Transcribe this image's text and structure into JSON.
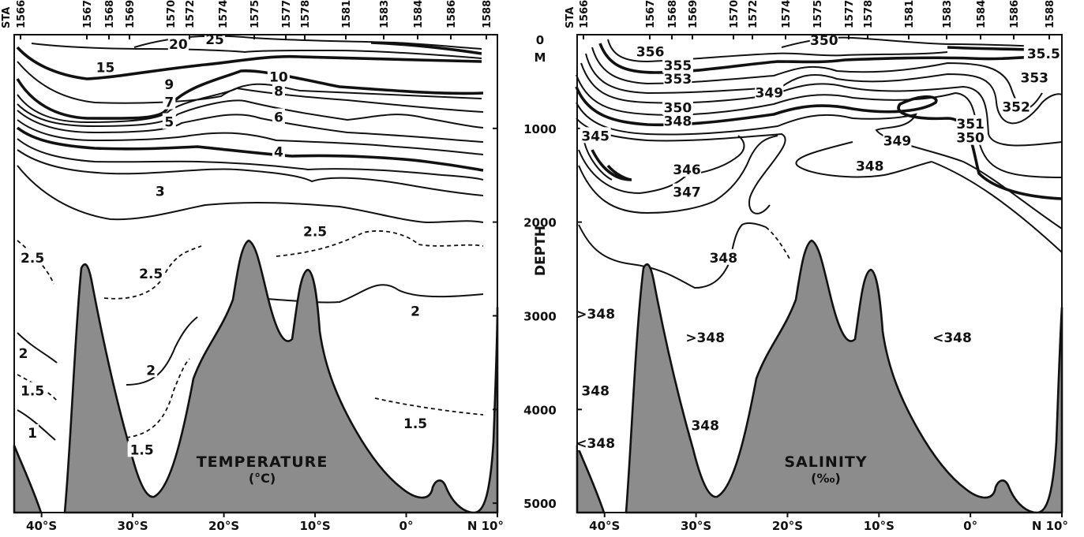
{
  "chart_data": [
    {
      "type": "contour",
      "title": "TEMPERATURE",
      "unit_label": "(°C)",
      "station_header": "STA",
      "stations": [
        "1566",
        "1567",
        "1568",
        "1569",
        "1570",
        "1572",
        "1574",
        "1575",
        "1577",
        "1578",
        "1581",
        "1583",
        "1584",
        "1586",
        "1588"
      ],
      "x_ticks": [
        "40°S",
        "30°S",
        "20°S",
        "10°S",
        "0°",
        "N 10°"
      ],
      "x_tick_values": [
        -40,
        -30,
        -20,
        -10,
        0,
        10
      ],
      "xlim": [
        -43,
        10
      ],
      "ylim": [
        0,
        5100
      ],
      "contour_labels": [
        {
          "label": "25",
          "lat": -21,
          "depth": 50,
          "style": "solid"
        },
        {
          "label": "20",
          "lat": -25,
          "depth": 100,
          "style": "solid"
        },
        {
          "label": "15",
          "lat": -33,
          "depth": 350,
          "style": "bold"
        },
        {
          "label": "10",
          "lat": -14,
          "depth": 450,
          "style": "bold"
        },
        {
          "label": "9",
          "lat": -26,
          "depth": 530,
          "style": "solid"
        },
        {
          "label": "8",
          "lat": -14,
          "depth": 600,
          "style": "solid"
        },
        {
          "label": "7",
          "lat": -26,
          "depth": 720,
          "style": "solid"
        },
        {
          "label": "6",
          "lat": -14,
          "depth": 880,
          "style": "solid"
        },
        {
          "label": "5",
          "lat": -26,
          "depth": 930,
          "style": "bold"
        },
        {
          "label": "4",
          "lat": -14,
          "depth": 1250,
          "style": "solid"
        },
        {
          "label": "3",
          "lat": -27,
          "depth": 1670,
          "style": "solid"
        },
        {
          "label": "2.5",
          "lat": -10,
          "depth": 2100,
          "style": "dashed"
        },
        {
          "label": "2.5",
          "lat": -41,
          "depth": 2380,
          "style": "dashed"
        },
        {
          "label": "2.5",
          "lat": -28,
          "depth": 2550,
          "style": "dashed"
        },
        {
          "label": "2",
          "lat": 1,
          "depth": 2950,
          "style": "solid"
        },
        {
          "label": "2",
          "lat": -28,
          "depth": 3580,
          "style": "solid"
        },
        {
          "label": "2",
          "lat": -42,
          "depth": 3400,
          "style": "solid"
        },
        {
          "label": "1.5",
          "lat": -41,
          "depth": 3800,
          "style": "dashed"
        },
        {
          "label": "1.5",
          "lat": 1,
          "depth": 4150,
          "style": "dashed"
        },
        {
          "label": "1.5",
          "lat": -29,
          "depth": 4430,
          "style": "dashed"
        },
        {
          "label": "1",
          "lat": -41,
          "depth": 4250,
          "style": "solid"
        }
      ]
    },
    {
      "type": "contour",
      "title": "SALINITY",
      "unit_label": "(‰)",
      "station_header": "STA",
      "stations": [
        "1566",
        "1567",
        "1568",
        "1569",
        "1570",
        "1572",
        "1574",
        "1575",
        "1577",
        "1578",
        "1581",
        "1583",
        "1584",
        "1586",
        "1588"
      ],
      "x_ticks": [
        "40°S",
        "30°S",
        "20°S",
        "10°S",
        "0°",
        "N 10°"
      ],
      "x_tick_values": [
        -40,
        -30,
        -20,
        -10,
        0,
        10
      ],
      "xlim": [
        -43,
        10
      ],
      "ylim": [
        0,
        5100
      ],
      "y_axis_label": "DEPTH",
      "y_top_label": "0",
      "y_unit_label": "M",
      "y_ticks": [
        "1000",
        "2000",
        "3000",
        "4000",
        "5000"
      ],
      "y_tick_values": [
        1000,
        2000,
        3000,
        4000,
        5000
      ],
      "contour_labels": [
        {
          "label": "350",
          "lat": -16,
          "depth": 60,
          "style": "solid"
        },
        {
          "label": "356",
          "lat": -35,
          "depth": 180,
          "style": "solid"
        },
        {
          "label": "35.5",
          "lat": 8,
          "depth": 200,
          "style": "bold"
        },
        {
          "label": "355",
          "lat": -32,
          "depth": 330,
          "style": "bold"
        },
        {
          "label": "353",
          "lat": -32,
          "depth": 470,
          "style": "solid"
        },
        {
          "label": "353",
          "lat": 7,
          "depth": 460,
          "style": "solid"
        },
        {
          "label": "349",
          "lat": -22,
          "depth": 620,
          "style": "solid"
        },
        {
          "label": "352",
          "lat": 5,
          "depth": 770,
          "style": "solid"
        },
        {
          "label": "350",
          "lat": -32,
          "depth": 780,
          "style": "bold"
        },
        {
          "label": "348",
          "lat": -32,
          "depth": 920,
          "style": "solid"
        },
        {
          "label": "351",
          "lat": 0,
          "depth": 950,
          "style": "solid"
        },
        {
          "label": "345",
          "lat": -41,
          "depth": 1080,
          "style": "bold"
        },
        {
          "label": "350",
          "lat": 0,
          "depth": 1100,
          "style": "bold"
        },
        {
          "label": "349",
          "lat": -8,
          "depth": 1130,
          "style": "solid"
        },
        {
          "label": "348",
          "lat": -11,
          "depth": 1400,
          "style": "solid"
        },
        {
          "label": "346",
          "lat": -31,
          "depth": 1440,
          "style": "solid"
        },
        {
          "label": "347",
          "lat": -31,
          "depth": 1680,
          "style": "solid"
        },
        {
          "label": "348",
          "lat": -27,
          "depth": 2380,
          "style": "solid"
        },
        {
          "label": ">348",
          "lat": -41,
          "depth": 2980,
          "style": "solid"
        },
        {
          "label": ">348",
          "lat": -29,
          "depth": 3230,
          "style": "solid"
        },
        {
          "label": "<348",
          "lat": -2,
          "depth": 3230,
          "style": "solid"
        },
        {
          "label": "348",
          "lat": -41,
          "depth": 3800,
          "style": "solid"
        },
        {
          "label": "348",
          "lat": -29,
          "depth": 4170,
          "style": "solid"
        },
        {
          "label": "<348",
          "lat": -41,
          "depth": 4360,
          "style": "solid"
        }
      ]
    }
  ]
}
